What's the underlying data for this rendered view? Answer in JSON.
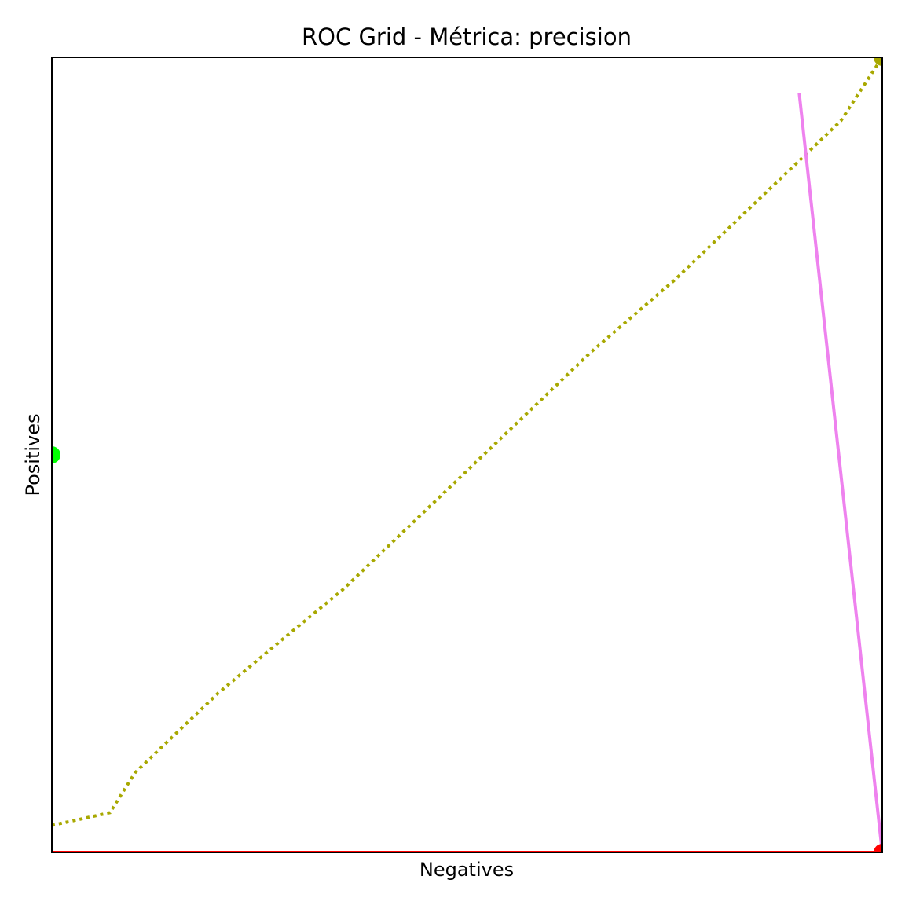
{
  "chart_data": {
    "type": "line",
    "title": "ROC Grid - Métrica: precision",
    "xlabel": "Negatives",
    "ylabel": "Positives",
    "xlim": [
      0,
      1
    ],
    "ylim": [
      0,
      1
    ],
    "grid": false,
    "legend": "none",
    "series": [
      {
        "key": "olive",
        "color": "#a8a800",
        "style": "dotted",
        "x": [
          0.0,
          0.07,
          0.1,
          0.15,
          0.2,
          0.28,
          0.35,
          0.45,
          0.55,
          0.65,
          0.75,
          0.85,
          0.95,
          1.0
        ],
        "y": [
          0.034,
          0.05,
          0.1,
          0.15,
          0.2,
          0.27,
          0.33,
          0.43,
          0.53,
          0.63,
          0.72,
          0.82,
          0.92,
          1.0
        ],
        "end_marker": "end"
      },
      {
        "key": "violet",
        "color": "#ee82ee",
        "style": "solid",
        "x": [
          0.9,
          1.0
        ],
        "y": [
          0.955,
          0.0
        ],
        "end_marker": "none"
      },
      {
        "key": "green",
        "color": "#00ff00",
        "style": "solid",
        "x": [
          0.0,
          0.0
        ],
        "y": [
          0.0,
          0.5
        ],
        "end_marker": "end"
      },
      {
        "key": "red",
        "color": "#ff0000",
        "style": "solid",
        "x": [
          0.0,
          1.0
        ],
        "y": [
          0.0,
          0.0
        ],
        "end_marker": "end"
      }
    ]
  }
}
